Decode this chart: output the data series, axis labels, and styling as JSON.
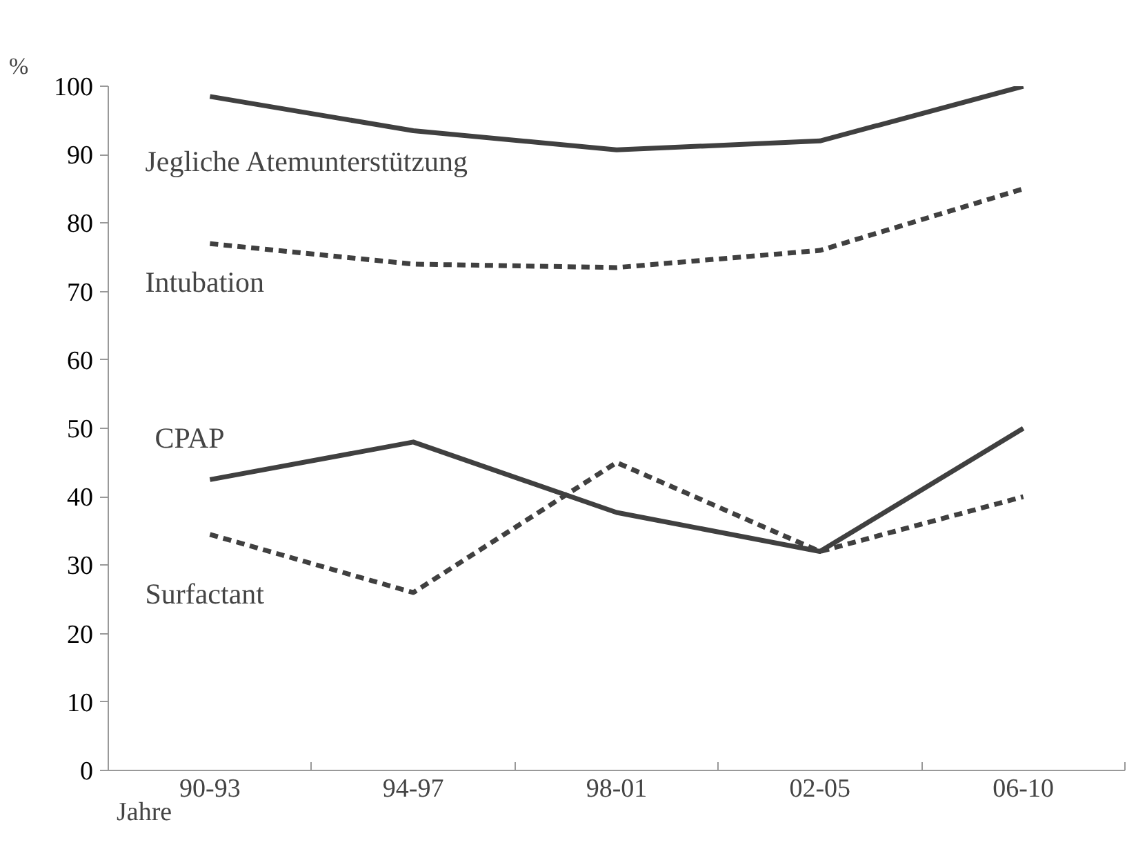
{
  "chart_data": {
    "type": "line",
    "xlabel": "Jahre",
    "ylabel": "%",
    "categories": [
      "90-93",
      "94-97",
      "98-01",
      "02-05",
      "06-10"
    ],
    "series": [
      {
        "name": "Jegliche Atemunterstützung",
        "color": "#404040",
        "line_style": "solid",
        "values": [
          98.5,
          93.5,
          90.7,
          92,
          100
        ]
      },
      {
        "name": "Intubation",
        "color": "#404040",
        "line_style": "dashed",
        "values": [
          77,
          74,
          73.5,
          76,
          85
        ]
      },
      {
        "name": "CPAP",
        "color": "#404040",
        "line_style": "solid",
        "values": [
          42.5,
          48,
          37.7,
          32,
          50
        ]
      },
      {
        "name": "Surfactant",
        "color": "#404040",
        "line_style": "dashed",
        "values": [
          34.5,
          26,
          45,
          32,
          40
        ]
      }
    ],
    "ylim": [
      0,
      100
    ],
    "yticks": [
      0,
      10,
      20,
      30,
      40,
      50,
      60,
      70,
      80,
      90,
      100
    ],
    "grid": false,
    "marker": "none"
  }
}
